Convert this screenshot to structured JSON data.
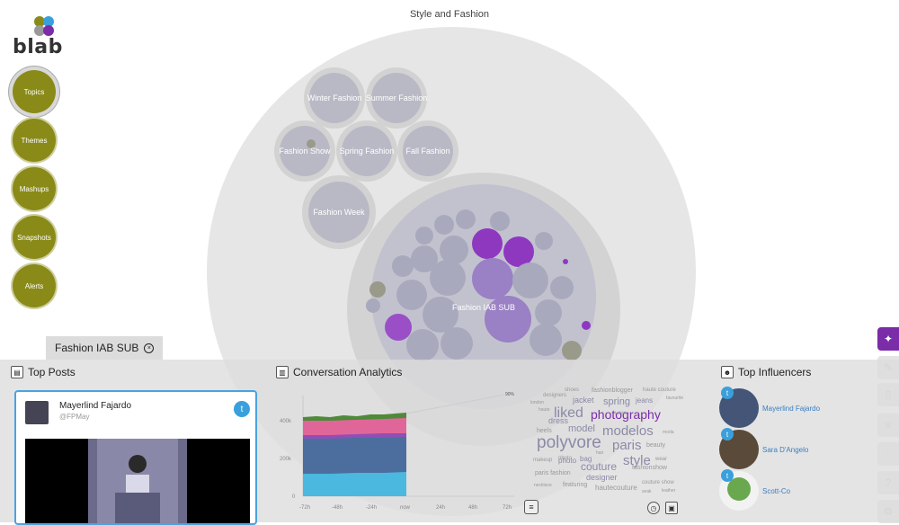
{
  "app": {
    "logo_text": "blab"
  },
  "nav": [
    {
      "label": "Topics",
      "active": true
    },
    {
      "label": "Themes",
      "active": false
    },
    {
      "label": "Mashups",
      "active": false
    },
    {
      "label": "Snapshots",
      "active": false
    },
    {
      "label": "Alerts",
      "active": false
    }
  ],
  "viz": {
    "title": "Style and Fashion",
    "bubbles": [
      "Winter Fashion",
      "Summer Fashion",
      "Fashion Show",
      "Spring Fashion",
      "Fall Fashion",
      "Fashion Week",
      "Fashion IAB SUB"
    ]
  },
  "selected_tab": {
    "label": "Fashion IAB SUB"
  },
  "top_posts": {
    "title": "Top Posts",
    "post": {
      "author": "Mayerlind Fajardo",
      "handle": "@FPMay"
    }
  },
  "analytics": {
    "title": "Conversation Analytics",
    "y_ticks": [
      "400k",
      "200k",
      "0"
    ],
    "x_ticks": [
      "-72h",
      "-48h",
      "-24h",
      "now",
      "24h",
      "48h",
      "72h"
    ],
    "badge": "90%",
    "colors": {
      "green": "#4e8a3a",
      "pink": "#e0669a",
      "purple": "#8f4fb5",
      "blue": "#4c6e9e",
      "cyan": "#4bb8e0"
    },
    "word_cloud": [
      {
        "text": "shoes",
        "size": 6,
        "color": "#999"
      },
      {
        "text": "fashionblogger",
        "size": 7,
        "color": "#999"
      },
      {
        "text": "haute couture",
        "size": 6,
        "color": "#999"
      },
      {
        "text": "designers",
        "size": 6,
        "color": "#999"
      },
      {
        "text": "jacket",
        "size": 9,
        "color": "#8a8aa8"
      },
      {
        "text": "spring",
        "size": 11,
        "color": "#8a8aa8"
      },
      {
        "text": "jeans",
        "size": 8,
        "color": "#8a8aa8"
      },
      {
        "text": "favourite",
        "size": 5,
        "color": "#999"
      },
      {
        "text": "london",
        "size": 5,
        "color": "#999"
      },
      {
        "text": "liked",
        "size": 16,
        "color": "#8a8aa8"
      },
      {
        "text": "photography",
        "size": 14,
        "color": "#7b2ca8"
      },
      {
        "text": "haute",
        "size": 5,
        "color": "#999"
      },
      {
        "text": "dress",
        "size": 9,
        "color": "#8a8aa8"
      },
      {
        "text": "t shirt",
        "size": 5,
        "color": "#999"
      },
      {
        "text": "heels",
        "size": 7,
        "color": "#999"
      },
      {
        "text": "model",
        "size": 11,
        "color": "#8a8aa8"
      },
      {
        "text": "modelos",
        "size": 15,
        "color": "#8a8aa8"
      },
      {
        "text": "moda",
        "size": 5,
        "color": "#999"
      },
      {
        "text": "polyvore",
        "size": 19,
        "color": "#8a8aa8"
      },
      {
        "text": "paris",
        "size": 15,
        "color": "#8a8aa8"
      },
      {
        "text": "photo",
        "size": 6,
        "color": "#999"
      },
      {
        "text": "beauty",
        "size": 7,
        "color": "#999"
      },
      {
        "text": "hair",
        "size": 5,
        "color": "#999"
      },
      {
        "text": "makeup",
        "size": 6,
        "color": "#999"
      },
      {
        "text": "photo",
        "size": 8,
        "color": "#8a8aa8"
      },
      {
        "text": "bag",
        "size": 8,
        "color": "#8a8aa8"
      },
      {
        "text": "style",
        "size": 15,
        "color": "#8a8aa8"
      },
      {
        "text": "wear",
        "size": 6,
        "color": "#999"
      },
      {
        "text": "couture",
        "size": 12,
        "color": "#8a8aa8"
      },
      {
        "text": "paris fashion",
        "size": 7,
        "color": "#999"
      },
      {
        "text": "fashionshow",
        "size": 7,
        "color": "#999"
      },
      {
        "text": "designer",
        "size": 9,
        "color": "#8a8aa8"
      },
      {
        "text": "necklace",
        "size": 5,
        "color": "#999"
      },
      {
        "text": "featuring",
        "size": 7,
        "color": "#999"
      },
      {
        "text": "hautecouture",
        "size": 8,
        "color": "#999"
      },
      {
        "text": "couture show",
        "size": 6,
        "color": "#999"
      },
      {
        "text": "seak",
        "size": 5,
        "color": "#999"
      },
      {
        "text": "leather",
        "size": 5,
        "color": "#999"
      }
    ]
  },
  "influencers": {
    "title": "Top Influencers",
    "items": [
      {
        "name": "Mayerlind Fajardo"
      },
      {
        "name": "Sara D'Angelo"
      },
      {
        "name": "Scott-Co"
      }
    ]
  },
  "side_tools": [
    "compass-icon",
    "pencil-icon",
    "document-icon",
    "list-icon",
    "share-icon",
    "help-icon",
    "settings-icon"
  ]
}
